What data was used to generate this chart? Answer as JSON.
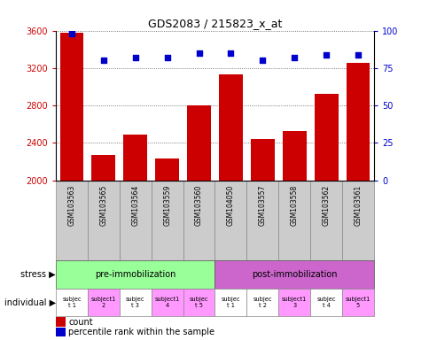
{
  "title": "GDS2083 / 215823_x_at",
  "samples": [
    "GSM103563",
    "GSM103565",
    "GSM103564",
    "GSM103559",
    "GSM103560",
    "GSM104050",
    "GSM103557",
    "GSM103558",
    "GSM103562",
    "GSM103561"
  ],
  "counts": [
    3580,
    2270,
    2490,
    2230,
    2800,
    3130,
    2440,
    2530,
    2920,
    3260
  ],
  "percentile_ranks": [
    98,
    80,
    82,
    82,
    85,
    85,
    80,
    82,
    84,
    84
  ],
  "ylim_left": [
    2000,
    3600
  ],
  "ylim_right": [
    0,
    100
  ],
  "yticks_left": [
    2000,
    2400,
    2800,
    3200,
    3600
  ],
  "yticks_right": [
    0,
    25,
    50,
    75,
    100
  ],
  "bar_color": "#cc0000",
  "dot_color": "#0000cc",
  "stress_groups": [
    {
      "label": "pre-immobilization",
      "start": 0,
      "end": 5,
      "color": "#99ff99"
    },
    {
      "label": "post-immobilization",
      "start": 5,
      "end": 10,
      "color": "#cc66cc"
    }
  ],
  "individuals": [
    {
      "label": "subjec\nt 1",
      "color": "#ffffff"
    },
    {
      "label": "subject1\n2",
      "color": "#ff99ff"
    },
    {
      "label": "subjec\nt 3",
      "color": "#ffffff"
    },
    {
      "label": "subject1\n4",
      "color": "#ff99ff"
    },
    {
      "label": "subjec\nt 5",
      "color": "#ff99ff"
    },
    {
      "label": "subjec\nt 1",
      "color": "#ffffff"
    },
    {
      "label": "subjec\nt 2",
      "color": "#ffffff"
    },
    {
      "label": "subject1\n3",
      "color": "#ff99ff"
    },
    {
      "label": "subjec\nt 4",
      "color": "#ffffff"
    },
    {
      "label": "subject1\n5",
      "color": "#ff99ff"
    }
  ],
  "legend_count_label": "count",
  "legend_pct_label": "percentile rank within the sample",
  "stress_label": "stress",
  "individual_label": "individual",
  "grid_color": "#555555",
  "tick_color_left": "#cc0000",
  "tick_color_right": "#0000cc",
  "bg_color": "#ffffff",
  "sample_box_color": "#cccccc",
  "sample_box_edge": "#888888"
}
